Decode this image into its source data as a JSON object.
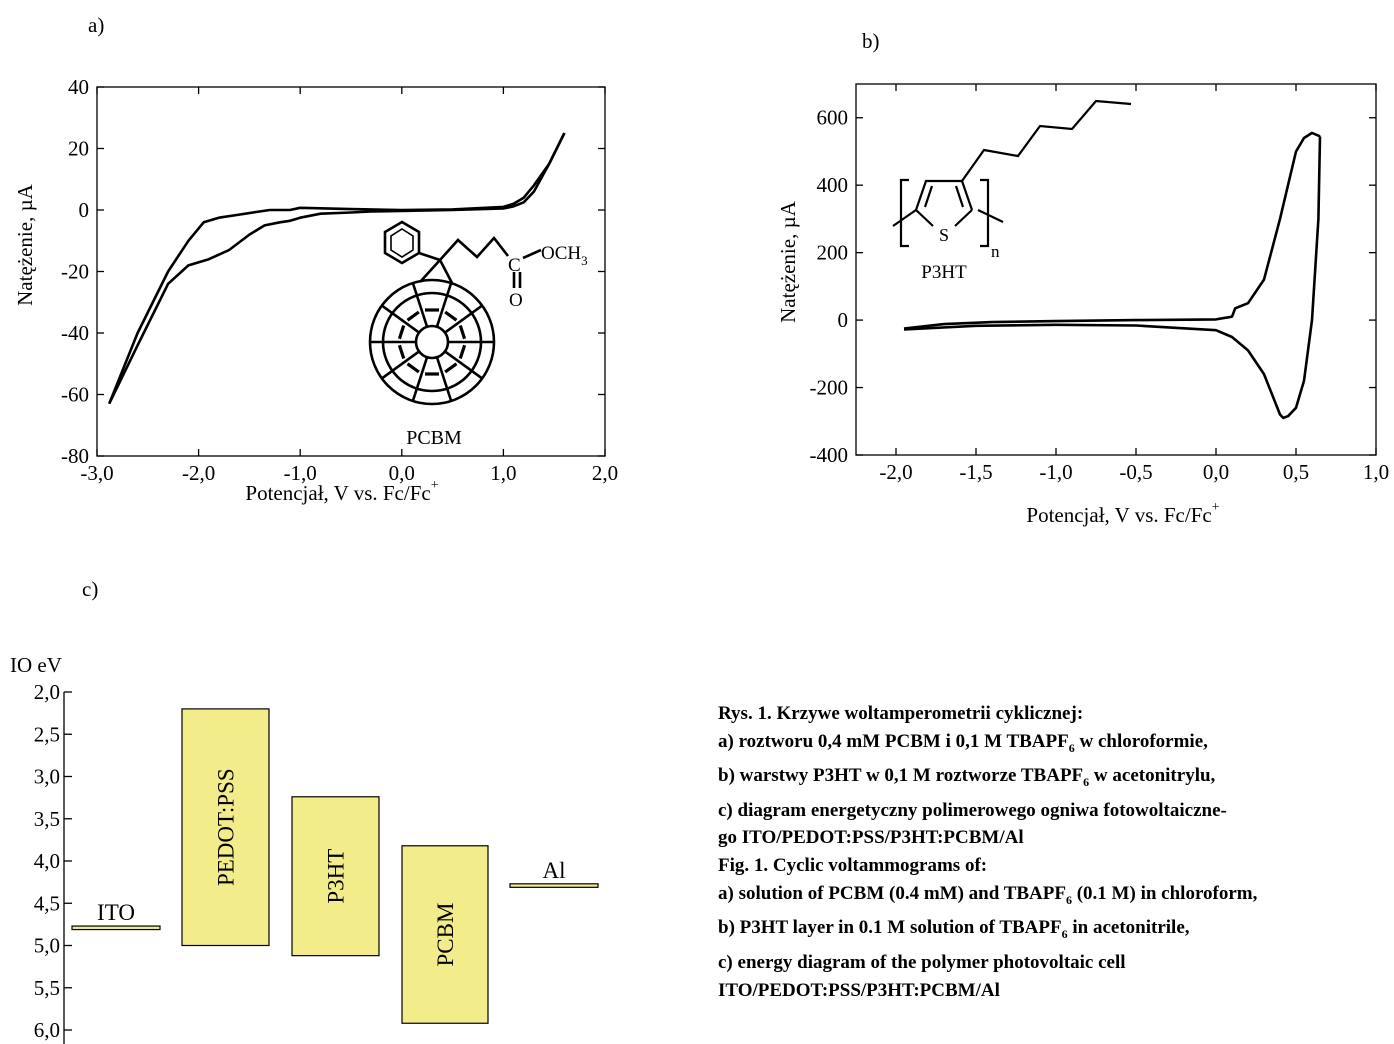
{
  "panel_labels": {
    "a": "a)",
    "b": "b)",
    "c": "c)"
  },
  "chart_data": [
    {
      "id": "a",
      "type": "line",
      "xlabel": "Potencjał, V vs. Fc/Fc",
      "xlabel_sup": "+",
      "ylabel": "Natężenie, µA",
      "xlim": [
        -3.0,
        2.0
      ],
      "ylim": [
        -80,
        40
      ],
      "x_ticks": [
        -3.0,
        -2.0,
        -1.0,
        0.0,
        1.0,
        2.0
      ],
      "x_tick_labels": [
        "-3,0",
        "-2,0",
        "-1,0",
        "0,0",
        "1,0",
        "2,0"
      ],
      "y_ticks": [
        -80,
        -60,
        -40,
        -20,
        0,
        20,
        40
      ],
      "y_tick_labels": [
        "-80",
        "-60",
        "-40",
        "-20",
        "0",
        "20",
        "40"
      ],
      "series": [
        {
          "x": [
            -2.88,
            -2.6,
            -2.3,
            -2.1,
            -1.95,
            -1.8,
            -1.6,
            -1.4,
            -1.3,
            -1.2,
            -1.1,
            -1.0,
            -0.5,
            0.0,
            0.5,
            1.0,
            1.1,
            1.2,
            1.3,
            1.45,
            1.6
          ],
          "y": [
            -63,
            -40,
            -20,
            -10,
            -4,
            -2.5,
            -1.5,
            -0.5,
            0,
            0,
            0,
            0.7,
            0.3,
            0,
            0.2,
            1,
            2,
            4,
            8,
            15,
            25
          ]
        },
        {
          "x": [
            1.6,
            1.45,
            1.3,
            1.2,
            1.1,
            1.0,
            0.5,
            0.0,
            -0.3,
            -0.5,
            -0.8,
            -1.0,
            -1.1,
            -1.2,
            -1.35,
            -1.5,
            -1.7,
            -1.9,
            -2.1,
            -2.3,
            -2.6,
            -2.88
          ],
          "y": [
            25,
            15,
            6,
            2.5,
            1.2,
            0.5,
            0,
            -0.3,
            -0.5,
            -0.8,
            -1.2,
            -2.5,
            -3.5,
            -4,
            -5,
            -8,
            -13,
            -16,
            -18,
            -24,
            -44,
            -63
          ]
        }
      ],
      "annotation": "PCBM",
      "structure_labels": {
        "ester": "OCH",
        "ester_sub": "3",
        "carbon": "C",
        "oxygen": "O"
      }
    },
    {
      "id": "b",
      "type": "line",
      "xlabel": "Potencjał, V vs. Fc/Fc",
      "xlabel_sup": "+",
      "ylabel": "Natężenie, µA",
      "xlim": [
        -2.25,
        1.0
      ],
      "ylim": [
        -400,
        700
      ],
      "x_ticks": [
        -2.0,
        -1.5,
        -1.0,
        -0.5,
        0.0,
        0.5,
        1.0
      ],
      "x_tick_labels": [
        "-2,0",
        "-1,5",
        "-1,0",
        "-0,5",
        "0,0",
        "0,5",
        "1,0"
      ],
      "y_ticks": [
        -400,
        -200,
        0,
        200,
        400,
        600
      ],
      "y_tick_labels": [
        "-400",
        "-200",
        "0",
        "200",
        "400",
        "600"
      ],
      "series": [
        {
          "x": [
            -1.95,
            -1.7,
            -1.4,
            -1.0,
            -0.5,
            0.0,
            0.1,
            0.12,
            0.2,
            0.3,
            0.4,
            0.5,
            0.55,
            0.6,
            0.65
          ],
          "y": [
            -25,
            -12,
            -6,
            -3,
            0,
            2,
            10,
            35,
            50,
            120,
            300,
            500,
            540,
            555,
            545
          ]
        },
        {
          "x": [
            0.65,
            0.64,
            0.6,
            0.55,
            0.5,
            0.45,
            0.42,
            0.4,
            0.35,
            0.3,
            0.2,
            0.1,
            0.0,
            -0.5,
            -1.0,
            -1.5,
            -1.95
          ],
          "y": [
            545,
            300,
            0,
            -180,
            -260,
            -285,
            -290,
            -280,
            -220,
            -160,
            -90,
            -50,
            -30,
            -16,
            -14,
            -17,
            -28
          ]
        }
      ],
      "annotation": "P3HT",
      "structure_labels": {
        "sulfur": "S",
        "n": "n"
      }
    },
    {
      "id": "c",
      "type": "bar",
      "ylabel": "IO eV",
      "ylim": [
        -6.0,
        -2.0
      ],
      "y_ticks": [
        -2.0,
        -2.5,
        -3.0,
        -3.5,
        -4.0,
        -4.5,
        -5.0,
        -5.5,
        -6.0
      ],
      "y_tick_labels": [
        "2,0",
        "2,5",
        "3,0",
        "3,5",
        "4,0",
        "4,5",
        "5,0",
        "5,5",
        "6,0"
      ],
      "bar_color": "#f2ed8a",
      "bars": [
        {
          "name": "ITO",
          "top": -4.77,
          "bottom": -4.79,
          "label_mode": "above"
        },
        {
          "name": "PEDOT:PSS",
          "top": -2.2,
          "bottom": -5.0,
          "label_mode": "vertical"
        },
        {
          "name": "P3HT",
          "top": -3.24,
          "bottom": -5.12,
          "label_mode": "vertical"
        },
        {
          "name": "PCBM",
          "top": -3.82,
          "bottom": -5.92,
          "label_mode": "vertical"
        },
        {
          "name": "Al",
          "top": -4.27,
          "bottom": -4.29,
          "label_mode": "above"
        }
      ]
    }
  ],
  "caption": {
    "pl_title": "Rys. 1. Krzywe woltamperometrii cyklicznej:",
    "pl_a_1": "a) roztworu 0,4 mM PCBM i 0,1 M TBAPF",
    "pl_a_sub": "6",
    "pl_a_2": " w chloroformie,",
    "pl_b_1": "b) warstwy P3HT w 0,1 M roztworze TBAPF",
    "pl_b_sub": "6",
    "pl_b_2": " w acetonitrylu,",
    "pl_c_line1": "c) diagram energetyczny polimerowego ogniwa fotowoltaiczne-",
    "pl_c_line2": "go ITO/PEDOT:PSS/P3HT:PCBM/Al",
    "en_title": "Fig. 1. Cyclic voltammograms of:",
    "en_a_1": "a) solution of PCBM (0.4 mM) and TBAPF",
    "en_a_sub": "6",
    "en_a_2": " (0.1 M) in chloroform,",
    "en_b_1": "b) P3HT layer in 0.1 M solution of TBAPF",
    "en_b_sub": "6",
    "en_b_2": " in acetonitrile,",
    "en_c_line1": "c) energy diagram of the polymer photovoltaic cell",
    "en_c_line2": "ITO/PEDOT:PSS/P3HT:PCBM/Al"
  }
}
